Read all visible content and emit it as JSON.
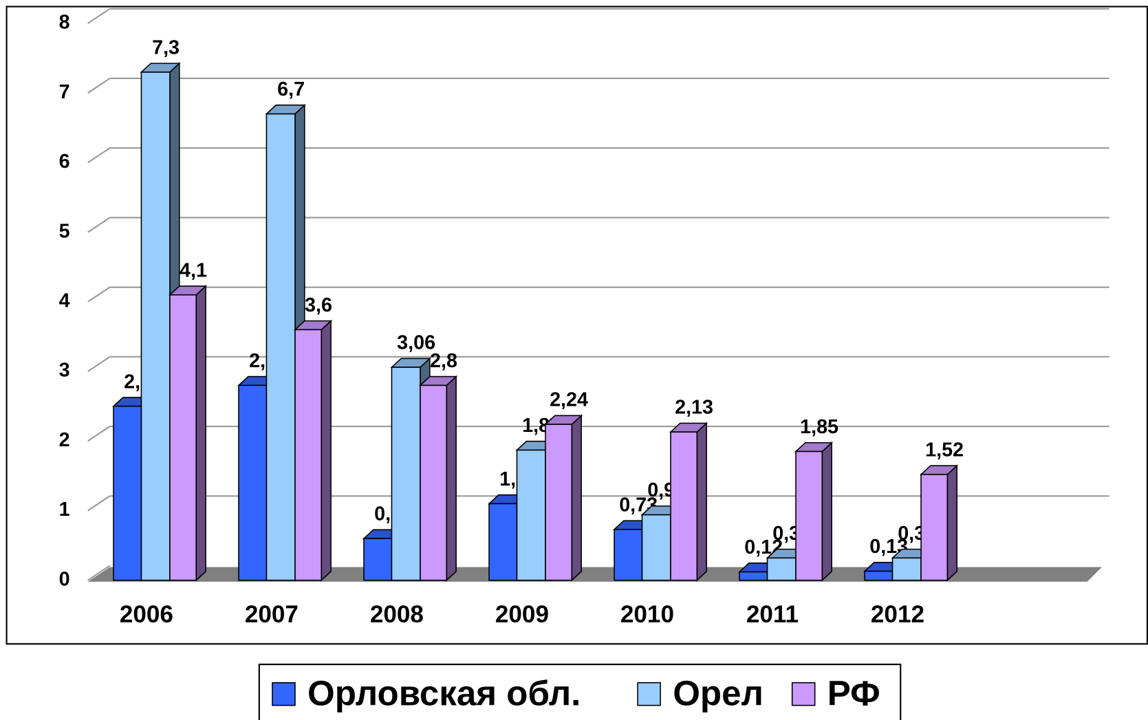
{
  "chart_data": {
    "type": "bar3d",
    "categories": [
      "2006",
      "2007",
      "2008",
      "2009",
      "2010",
      "2011",
      "2012"
    ],
    "series": [
      {
        "name": "Орловская обл.",
        "color": "#3366ff",
        "values": [
          2.5,
          2.8,
          0.6,
          1.1,
          0.73,
          0.12,
          0.13
        ],
        "value_labels": [
          "2,5",
          "2,8",
          "0,6",
          "1,1",
          "0,73",
          "0,12",
          "0,13"
        ]
      },
      {
        "name": "Орел",
        "color": "#99ccff",
        "values": [
          7.3,
          6.7,
          3.06,
          1.87,
          0.94,
          0.32,
          0.32
        ],
        "value_labels": [
          "7,3",
          "6,7",
          "3,06",
          "1,87",
          "0,94",
          "0,32",
          "0,32"
        ]
      },
      {
        "name": "РФ",
        "color": "#cc99ff",
        "values": [
          4.1,
          3.6,
          2.8,
          2.24,
          2.13,
          1.85,
          1.52
        ],
        "value_labels": [
          "4,1",
          "3,6",
          "2,8",
          "2,24",
          "2,13",
          "1,85",
          "1,52"
        ]
      }
    ],
    "ylim": [
      0,
      8
    ],
    "yticks": [
      0,
      1,
      2,
      3,
      4,
      5,
      6,
      7,
      8
    ],
    "grid": true,
    "legend": "bottom"
  }
}
